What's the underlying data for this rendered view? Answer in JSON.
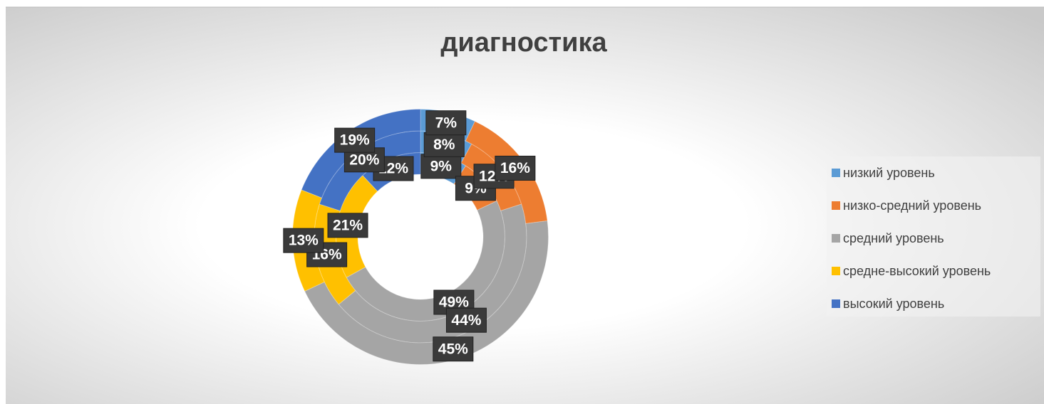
{
  "chart_data": {
    "type": "doughnut",
    "title": "диагностика",
    "categories": [
      "низкий уровень",
      "низко-средний уровень",
      "средний уровень",
      "средне-высокий уровень",
      "высокий уровень"
    ],
    "colors": [
      "#5b9bd5",
      "#ed7d31",
      "#a5a5a5",
      "#ffc000",
      "#4472c4"
    ],
    "series": [
      {
        "values": [
          9,
          9,
          49,
          21,
          12
        ],
        "value_labels": [
          "9%",
          "9%",
          "49%",
          "21%",
          "12%"
        ]
      },
      {
        "values": [
          8,
          12,
          44,
          16,
          20
        ],
        "value_labels": [
          "8%",
          "12%",
          "44%",
          "16%",
          "20%"
        ]
      },
      {
        "values": [
          7,
          16,
          45,
          13,
          19
        ],
        "value_labels": [
          "7%",
          "16%",
          "45%",
          "13%",
          "19%"
        ]
      }
    ],
    "legend": "right"
  }
}
